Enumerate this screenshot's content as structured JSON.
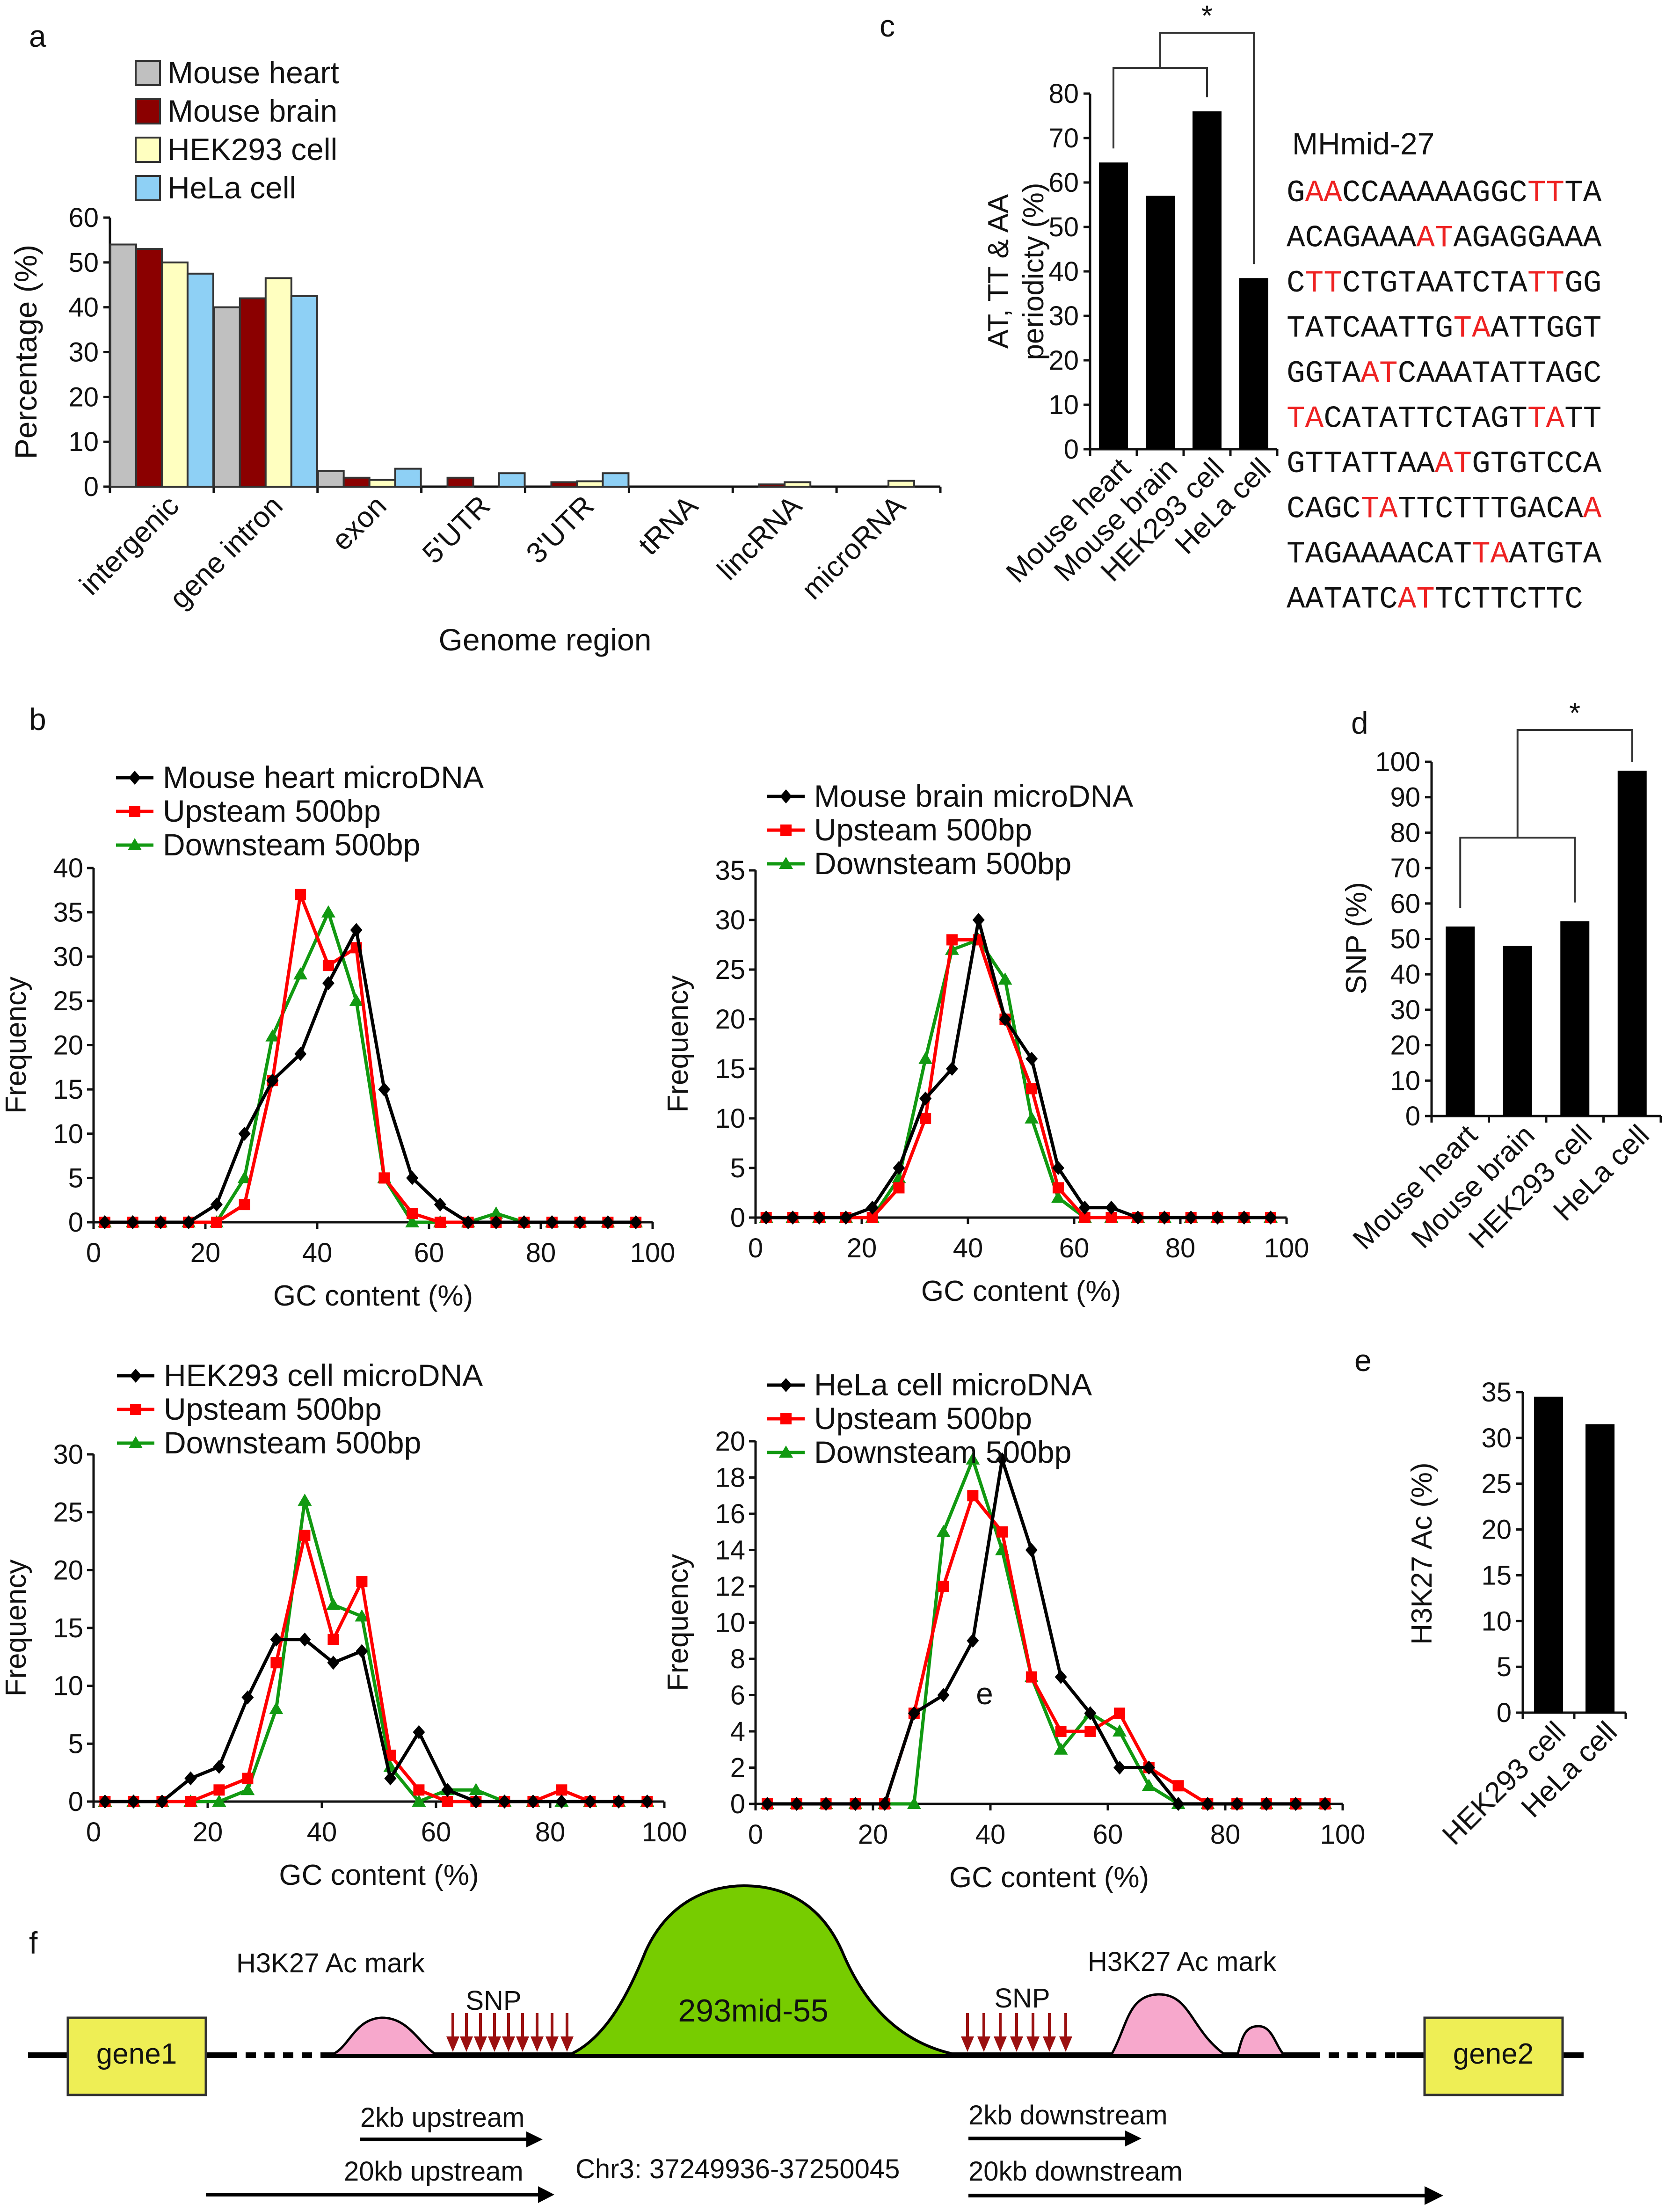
{
  "panels": {
    "a": "a",
    "b": "b",
    "c": "c",
    "d": "d",
    "e": "e",
    "f": "f"
  },
  "colors": {
    "mouse_heart": "#c0c0c0",
    "mouse_brain": "#8b0000",
    "hek293": "#ffffc0",
    "hela": "#8ed0f5",
    "microdna": "#000000",
    "upstream": "#ff0000",
    "downstream": "#119911",
    "highlight": "#ee2222",
    "h3k27_mark": "#f7a8cc",
    "microdna_blob": "#77cc00",
    "gene_box": "#eeee55",
    "snp_arrow": "#9b1010"
  },
  "chart_data": [
    {
      "id": "a",
      "type": "bar",
      "title": "",
      "xlabel": "Genome region",
      "ylabel": "Percentage (%)",
      "ylim": [
        0,
        60
      ],
      "yticks": [
        0,
        10,
        20,
        30,
        40,
        50,
        60
      ],
      "categories": [
        "intergenic",
        "gene intron",
        "exon",
        "5'UTR",
        "3'UTR",
        "tRNA",
        "lincRNA",
        "microRNA"
      ],
      "series": [
        {
          "name": "Mouse heart",
          "color": "#c0c0c0",
          "values": [
            54,
            40,
            3.5,
            0,
            0,
            0,
            0,
            0
          ]
        },
        {
          "name": "Mouse brain",
          "color": "#8b0000",
          "values": [
            53,
            42,
            2,
            2,
            1,
            0,
            0.5,
            0
          ]
        },
        {
          "name": "HEK293 cell",
          "color": "#ffffc0",
          "values": [
            50,
            46.5,
            1.5,
            0,
            1.2,
            0,
            1,
            1.3
          ]
        },
        {
          "name": "HeLa cell",
          "color": "#8ed0f5",
          "values": [
            47.5,
            42.5,
            4,
            3,
            3,
            0,
            0,
            0
          ]
        }
      ]
    },
    {
      "id": "c",
      "type": "bar",
      "title": "",
      "xlabel": "",
      "ylabel": "AT, TT & AA periodicty (%)",
      "ylabel_lines": [
        "AT, TT & AA",
        "periodicty (%)"
      ],
      "ylim": [
        0,
        80
      ],
      "yticks": [
        0,
        10,
        20,
        30,
        40,
        50,
        60,
        70,
        80
      ],
      "categories": [
        "Mouse heart",
        "Mouse brain",
        "HEK293 cell",
        "HeLa cell"
      ],
      "values": [
        64.5,
        57,
        76,
        38.5
      ],
      "significance": "*"
    },
    {
      "id": "d",
      "type": "bar",
      "title": "",
      "xlabel": "",
      "ylabel": "SNP (%)",
      "ylim": [
        0,
        100
      ],
      "yticks": [
        0,
        10,
        20,
        30,
        40,
        50,
        60,
        70,
        80,
        90,
        100
      ],
      "categories": [
        "Mouse heart",
        "Mouse brain",
        "HEK293 cell",
        "HeLa cell"
      ],
      "values": [
        53.5,
        48,
        55,
        97.5
      ],
      "significance": "*"
    },
    {
      "id": "e",
      "type": "bar",
      "title": "",
      "xlabel": "",
      "ylabel": "H3K27 Ac (%)",
      "ylim": [
        0,
        35
      ],
      "yticks": [
        0,
        5,
        10,
        15,
        20,
        25,
        30,
        35
      ],
      "categories": [
        "HEK293 cell",
        "HeLa cell"
      ],
      "values": [
        34.5,
        31.5
      ]
    },
    {
      "id": "b1",
      "type": "line",
      "title": "",
      "xlabel": "GC content (%)",
      "ylabel": "Frequency",
      "xlim": [
        0,
        100
      ],
      "ylim": [
        0,
        40
      ],
      "xticks": [
        0,
        20,
        40,
        60,
        80,
        100
      ],
      "yticks": [
        0,
        5,
        10,
        15,
        20,
        25,
        30,
        35,
        40
      ],
      "x": [
        2,
        7,
        12,
        17,
        22,
        27,
        32,
        37,
        42,
        47,
        52,
        57,
        62,
        67,
        72,
        77,
        82,
        87,
        92,
        97
      ],
      "series": [
        {
          "name": "Mouse heart  microDNA",
          "color": "#000000",
          "marker": "diamond",
          "values": [
            0,
            0,
            0,
            0,
            2,
            10,
            16,
            19,
            27,
            33,
            15,
            5,
            2,
            0,
            0,
            0,
            0,
            0,
            0,
            0
          ]
        },
        {
          "name": "Upsteam 500bp",
          "color": "#ff0000",
          "marker": "square",
          "values": [
            0,
            0,
            0,
            0,
            0,
            2,
            16,
            37,
            29,
            31,
            5,
            1,
            0,
            0,
            0,
            0,
            0,
            0,
            0,
            0
          ]
        },
        {
          "name": "Downsteam 500bp",
          "color": "#119911",
          "marker": "triangle",
          "values": [
            0,
            0,
            0,
            0,
            0,
            5,
            21,
            28,
            35,
            25,
            5,
            0,
            0,
            0,
            1,
            0,
            0,
            0,
            0,
            0
          ]
        }
      ]
    },
    {
      "id": "b2",
      "type": "line",
      "title": "",
      "xlabel": "GC content (%)",
      "ylabel": "Frequency",
      "xlim": [
        0,
        100
      ],
      "ylim": [
        0,
        35
      ],
      "xticks": [
        0,
        20,
        40,
        60,
        80,
        100
      ],
      "yticks": [
        0,
        5,
        10,
        15,
        20,
        25,
        30,
        35
      ],
      "x": [
        2,
        7,
        12,
        17,
        22,
        27,
        32,
        37,
        42,
        47,
        52,
        57,
        62,
        67,
        72,
        77,
        82,
        87,
        92,
        97
      ],
      "series": [
        {
          "name": "Mouse brain  microDNA",
          "color": "#000000",
          "marker": "diamond",
          "values": [
            0,
            0,
            0,
            0,
            1,
            5,
            12,
            15,
            30,
            20,
            16,
            5,
            1,
            1,
            0,
            0,
            0,
            0,
            0,
            0
          ]
        },
        {
          "name": "Upsteam 500bp",
          "color": "#ff0000",
          "marker": "square",
          "values": [
            0,
            0,
            0,
            0,
            0,
            3,
            10,
            28,
            28,
            20,
            13,
            3,
            0,
            0,
            0,
            0,
            0,
            0,
            0,
            0
          ]
        },
        {
          "name": "Downsteam 500bp",
          "color": "#119911",
          "marker": "triangle",
          "values": [
            0,
            0,
            0,
            0,
            0,
            4,
            16,
            27,
            28,
            24,
            10,
            2,
            0,
            0,
            0,
            0,
            0,
            0,
            0,
            0
          ]
        }
      ]
    },
    {
      "id": "b3",
      "type": "line",
      "title": "",
      "xlabel": "GC content (%)",
      "ylabel": "Frequency",
      "xlim": [
        0,
        100
      ],
      "ylim": [
        0,
        30
      ],
      "xticks": [
        0,
        20,
        40,
        60,
        80,
        100
      ],
      "yticks": [
        0,
        5,
        10,
        15,
        20,
        25,
        30
      ],
      "x": [
        2,
        7,
        12,
        17,
        22,
        27,
        32,
        37,
        42,
        47,
        52,
        57,
        62,
        67,
        72,
        77,
        82,
        87,
        92,
        97
      ],
      "series": [
        {
          "name": "HEK293 cell  microDNA",
          "color": "#000000",
          "marker": "diamond",
          "values": [
            0,
            0,
            0,
            2,
            3,
            9,
            14,
            14,
            12,
            13,
            2,
            6,
            1,
            0,
            0,
            0,
            0,
            0,
            0,
            0
          ]
        },
        {
          "name": "Upsteam 500bp",
          "color": "#ff0000",
          "marker": "square",
          "values": [
            0,
            0,
            0,
            0,
            1,
            2,
            12,
            23,
            14,
            19,
            4,
            1,
            0,
            0,
            0,
            0,
            1,
            0,
            0,
            0
          ]
        },
        {
          "name": "Downsteam 500bp",
          "color": "#119911",
          "marker": "triangle",
          "values": [
            0,
            0,
            0,
            0,
            0,
            1,
            8,
            26,
            17,
            16,
            3,
            0,
            1,
            1,
            0,
            0,
            0,
            0,
            0,
            0
          ]
        }
      ]
    },
    {
      "id": "b4",
      "type": "line",
      "title": "",
      "xlabel": "GC content (%)",
      "ylabel": "Frequency",
      "xlim": [
        0,
        100
      ],
      "ylim": [
        0,
        20
      ],
      "xticks": [
        0,
        20,
        40,
        60,
        80,
        100
      ],
      "yticks": [
        0,
        2,
        4,
        6,
        8,
        10,
        12,
        14,
        16,
        18,
        20
      ],
      "annotation": "e",
      "x": [
        2,
        7,
        12,
        17,
        22,
        27,
        32,
        37,
        42,
        47,
        52,
        57,
        62,
        67,
        72,
        77,
        82,
        87,
        92,
        97
      ],
      "series": [
        {
          "name": "HeLa cell  microDNA",
          "color": "#000000",
          "marker": "diamond",
          "values": [
            0,
            0,
            0,
            0,
            0,
            5,
            6,
            9,
            19,
            14,
            7,
            5,
            2,
            2,
            0,
            0,
            0,
            0,
            0,
            0
          ]
        },
        {
          "name": "Upsteam 500bp",
          "color": "#ff0000",
          "marker": "square",
          "values": [
            0,
            0,
            0,
            0,
            0,
            5,
            12,
            17,
            15,
            7,
            4,
            4,
            5,
            2,
            1,
            0,
            0,
            0,
            0,
            0
          ]
        },
        {
          "name": "Downsteam 500bp",
          "color": "#119911",
          "marker": "triangle",
          "values": [
            0,
            0,
            0,
            0,
            0,
            0,
            15,
            19,
            14,
            7,
            3,
            5,
            4,
            1,
            0,
            0,
            0,
            0,
            0,
            0
          ]
        }
      ]
    }
  ],
  "sequence": {
    "title": "MHmid-27",
    "lines": [
      [
        [
          "G",
          0
        ],
        [
          "AA",
          1
        ],
        [
          "CCAAAAAGGC",
          0
        ],
        [
          "TT",
          1
        ],
        [
          "TA",
          0
        ]
      ],
      [
        [
          "ACAGAAA",
          0
        ],
        [
          "AT",
          1
        ],
        [
          "AGAGGAAA",
          0
        ]
      ],
      [
        [
          "C",
          0
        ],
        [
          "TT",
          1
        ],
        [
          "CTGTAATCTA",
          0
        ],
        [
          "TT",
          1
        ],
        [
          "GG",
          0
        ]
      ],
      [
        [
          "TATCAATTG",
          0
        ],
        [
          "TA",
          1
        ],
        [
          "ATTGGT",
          0
        ]
      ],
      [
        [
          "GGTA",
          0
        ],
        [
          "AT",
          1
        ],
        [
          "CAAATATTAGC",
          0
        ]
      ],
      [
        [
          "TA",
          1
        ],
        [
          "CATATTCTAGT",
          0
        ],
        [
          "TA",
          1
        ],
        [
          "TT",
          0
        ]
      ],
      [
        [
          "GTTATTAA",
          0
        ],
        [
          "AT",
          1
        ],
        [
          "GTGTCCA",
          0
        ]
      ],
      [
        [
          "CAGC",
          0
        ],
        [
          "TA",
          1
        ],
        [
          "TTCTTTGACA",
          0
        ],
        [
          "A",
          1
        ]
      ],
      [
        [
          "TAGAAAACAT",
          0
        ],
        [
          "TA",
          1
        ],
        [
          "ATGTA",
          0
        ]
      ],
      [
        [
          "AATATC",
          0
        ],
        [
          "AT",
          1
        ],
        [
          "TCTTCTTC",
          0
        ]
      ]
    ]
  },
  "diagram_f": {
    "gene1": "gene1",
    "gene2": "gene2",
    "mark_left": "H3K27 Ac mark",
    "mark_right": "H3K27 Ac mark",
    "snp_left": "SNP",
    "snp_right": "SNP",
    "microdna": "293mid-55",
    "up2": "2kb upstream",
    "up20": "20kb upstream",
    "down2": "2kb downstream",
    "down20": "20kb downstream",
    "coords": "Chr3: 37249936-37250045"
  }
}
